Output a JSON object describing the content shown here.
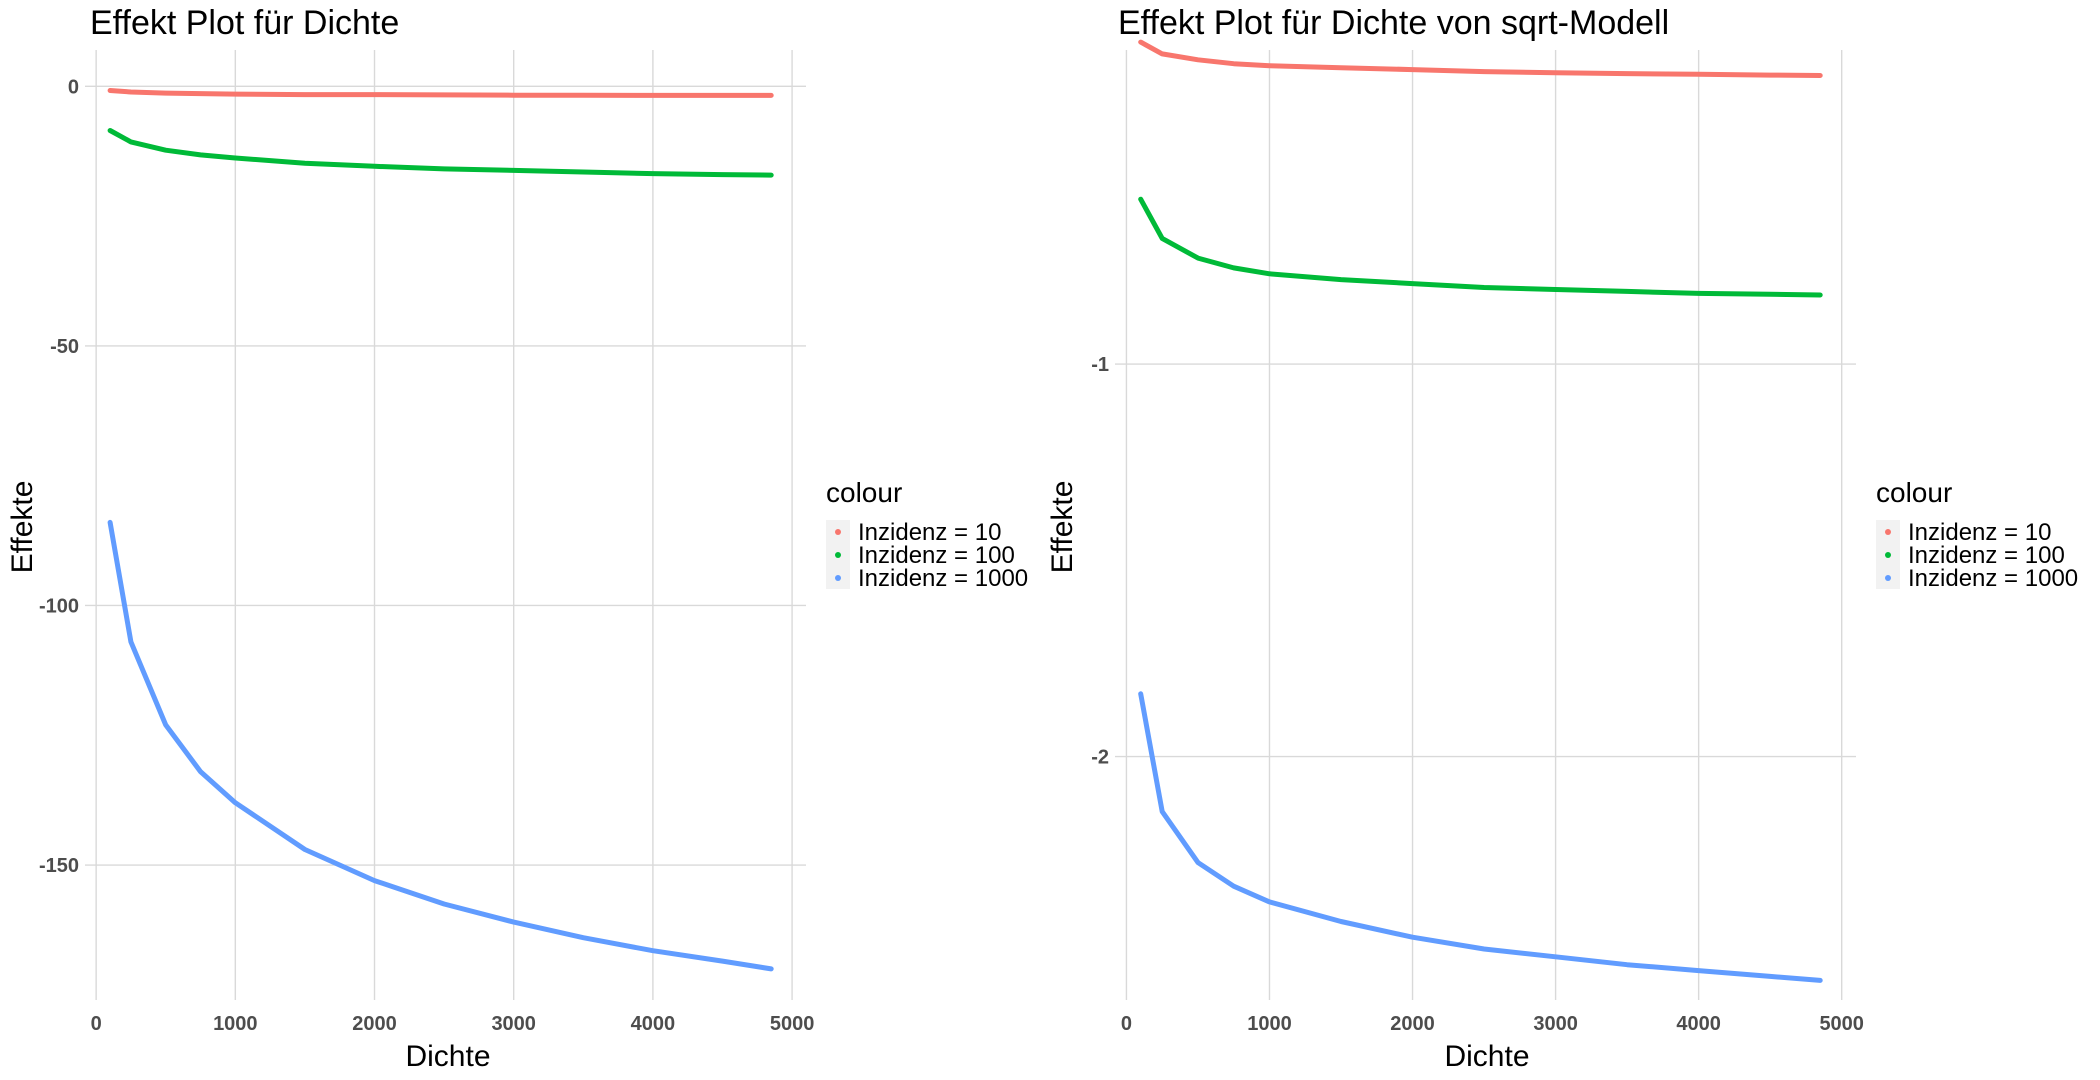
{
  "chart_data": [
    {
      "type": "line",
      "title": "Effekt Plot für Dichte",
      "xlabel": "Dichte",
      "ylabel": "Effekte",
      "xlim": [
        -80,
        5100
      ],
      "ylim": [
        -176,
        7
      ],
      "x_ticks": [
        0,
        1000,
        2000,
        3000,
        4000,
        5000
      ],
      "y_ticks": [
        0,
        -50,
        -100,
        -150
      ],
      "y_tick_labels": [
        "0",
        "-50",
        "-100",
        "-150"
      ],
      "grid": true,
      "legend": {
        "title": "colour",
        "position": "right"
      },
      "series": [
        {
          "name": "Inzidenz = 10",
          "color": "#F8766D",
          "x": [
            100,
            250,
            500,
            750,
            1000,
            1500,
            2000,
            2500,
            3000,
            3500,
            4000,
            4500,
            4850
          ],
          "y": [
            -0.8,
            -1.1,
            -1.3,
            -1.4,
            -1.5,
            -1.6,
            -1.6,
            -1.65,
            -1.7,
            -1.7,
            -1.75,
            -1.75,
            -1.75
          ]
        },
        {
          "name": "Inzidenz = 100",
          "color": "#00BA38",
          "x": [
            100,
            250,
            500,
            750,
            1000,
            1500,
            2000,
            2500,
            3000,
            3500,
            4000,
            4500,
            4850
          ],
          "y": [
            -8.5,
            -10.7,
            -12.3,
            -13.2,
            -13.8,
            -14.8,
            -15.4,
            -15.9,
            -16.2,
            -16.5,
            -16.8,
            -17.0,
            -17.1
          ]
        },
        {
          "name": "Inzidenz = 1000",
          "color": "#619CFF",
          "x": [
            100,
            250,
            500,
            750,
            1000,
            1500,
            2000,
            2500,
            3000,
            3500,
            4000,
            4500,
            4850
          ],
          "y": [
            -84,
            -107,
            -123,
            -132,
            -138,
            -147,
            -153,
            -157.5,
            -161,
            -164,
            -166.5,
            -168.5,
            -170
          ]
        }
      ]
    },
    {
      "type": "line",
      "title": "Effekt Plot für Dichte von sqrt-Modell",
      "xlabel": "Dichte",
      "ylabel": "Effekte",
      "xlim": [
        -80,
        5100
      ],
      "ylim": [
        -2.62,
        -0.2
      ],
      "x_ticks": [
        0,
        1000,
        2000,
        3000,
        4000,
        5000
      ],
      "y_ticks": [
        -1,
        -2
      ],
      "y_tick_labels": [
        "-1",
        "-2"
      ],
      "grid": true,
      "legend": {
        "title": "colour",
        "position": "right"
      },
      "series": [
        {
          "name": "Inzidenz = 10",
          "color": "#F8766D",
          "x": [
            100,
            250,
            500,
            750,
            1000,
            1500,
            2000,
            2500,
            3000,
            3500,
            4000,
            4500,
            4850
          ],
          "y": [
            -0.18,
            -0.21,
            -0.225,
            -0.235,
            -0.24,
            -0.245,
            -0.25,
            -0.255,
            -0.258,
            -0.26,
            -0.262,
            -0.264,
            -0.265
          ]
        },
        {
          "name": "Inzidenz = 100",
          "color": "#00BA38",
          "x": [
            100,
            250,
            500,
            750,
            1000,
            1500,
            2000,
            2500,
            3000,
            3500,
            4000,
            4500,
            4850
          ],
          "y": [
            -0.58,
            -0.68,
            -0.73,
            -0.755,
            -0.77,
            -0.785,
            -0.795,
            -0.805,
            -0.81,
            -0.815,
            -0.82,
            -0.822,
            -0.824
          ]
        },
        {
          "name": "Inzidenz = 1000",
          "color": "#619CFF",
          "x": [
            100,
            250,
            500,
            750,
            1000,
            1500,
            2000,
            2500,
            3000,
            3500,
            4000,
            4500,
            4850
          ],
          "y": [
            -1.84,
            -2.14,
            -2.27,
            -2.33,
            -2.37,
            -2.42,
            -2.46,
            -2.49,
            -2.51,
            -2.53,
            -2.545,
            -2.56,
            -2.57
          ]
        }
      ]
    }
  ]
}
